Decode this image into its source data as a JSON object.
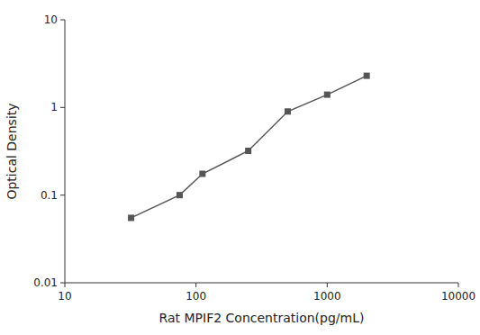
{
  "chart_data": {
    "type": "line",
    "x": [
      32,
      75,
      112,
      250,
      500,
      1000,
      2000
    ],
    "values": [
      0.055,
      0.1,
      0.175,
      0.32,
      0.9,
      1.4,
      2.3
    ],
    "xlabel": "Rat MPIF2 Concentration(pg/mL)",
    "ylabel": "Optical Density",
    "xlim": [
      10,
      10000
    ],
    "ylim": [
      0.01,
      10
    ],
    "xticks": [
      10,
      100,
      1000,
      10000
    ],
    "yticks": [
      0.01,
      0.1,
      1,
      10
    ],
    "log": true,
    "grid": false,
    "color": "#555555",
    "marker": "square",
    "line_style": "solid"
  }
}
